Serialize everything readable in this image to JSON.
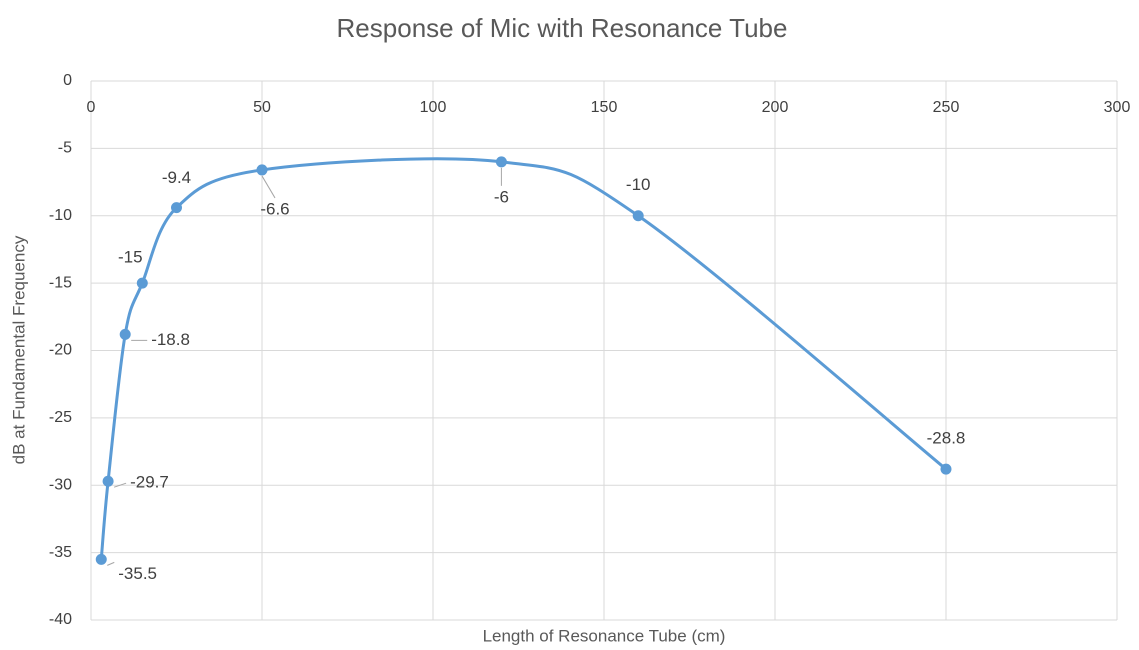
{
  "chart_data": {
    "type": "scatter",
    "title": "Response of Mic with Resonance Tube",
    "xlabel": "Length of Resonance Tube (cm)",
    "ylabel": "dB at Fundamental Frequency",
    "series": [
      {
        "name": "Response",
        "color": "#5b9bd5",
        "x": [
          3,
          5,
          10,
          15,
          25,
          50,
          120,
          160,
          250
        ],
        "values": [
          -35.5,
          -29.7,
          -18.8,
          -15,
          -9.4,
          -6.6,
          -6,
          -10,
          -28.8
        ]
      }
    ],
    "xlim": [
      0,
      300
    ],
    "xticks": [
      0,
      50,
      100,
      150,
      200,
      250,
      300
    ],
    "ylim": [
      -40,
      0
    ],
    "yticks": [
      0,
      -5,
      -10,
      -15,
      -20,
      -25,
      -30,
      -35,
      -40
    ],
    "grid": true,
    "smooth": true
  }
}
